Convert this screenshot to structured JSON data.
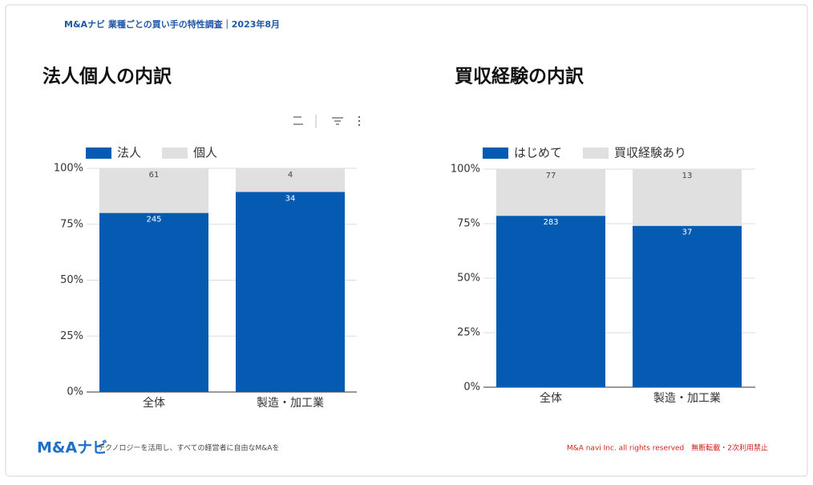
{
  "header": {
    "text": "M&Aナビ 業種ごとの買い手の特性調査｜2023年8月"
  },
  "footer": {
    "logo": "M&Aナビ",
    "tagline": "テクノロジーを活用し、すべての経営者に自由なM&Aを",
    "copyright": "M&A navi Inc. all rights reserved　無断転載・2次利用禁止"
  },
  "chart_data": [
    {
      "type": "bar",
      "stacking": "percent",
      "title": "法人個人の内訳",
      "categories": [
        "全体",
        "製造・加工業"
      ],
      "series": [
        {
          "name": "法人",
          "color": "#055bb2",
          "values": [
            245,
            34
          ]
        },
        {
          "name": "個人",
          "color": "#e0e0e0",
          "values": [
            61,
            4
          ]
        }
      ],
      "ylim": [
        0,
        100
      ],
      "yticks": [
        {
          "value": 0,
          "label": "0%"
        },
        {
          "value": 25,
          "label": "25%"
        },
        {
          "value": 50,
          "label": "50%"
        },
        {
          "value": 75,
          "label": "75%"
        },
        {
          "value": 100,
          "label": "100%"
        }
      ],
      "grid": true,
      "legend": "top-left"
    },
    {
      "type": "bar",
      "stacking": "percent",
      "title": "買収経験の内訳",
      "categories": [
        "全体",
        "製造・加工業"
      ],
      "series": [
        {
          "name": "はじめて",
          "color": "#055bb2",
          "values": [
            283,
            37
          ]
        },
        {
          "name": "買収経験あり",
          "color": "#e0e0e0",
          "values": [
            77,
            13
          ]
        }
      ],
      "ylim": [
        0,
        100
      ],
      "yticks": [
        {
          "value": 0,
          "label": "0%"
        },
        {
          "value": 25,
          "label": "25%"
        },
        {
          "value": 50,
          "label": "50%"
        },
        {
          "value": 75,
          "label": "75%"
        },
        {
          "value": 100,
          "label": "100%"
        }
      ],
      "grid": true,
      "legend": "top-left"
    }
  ]
}
